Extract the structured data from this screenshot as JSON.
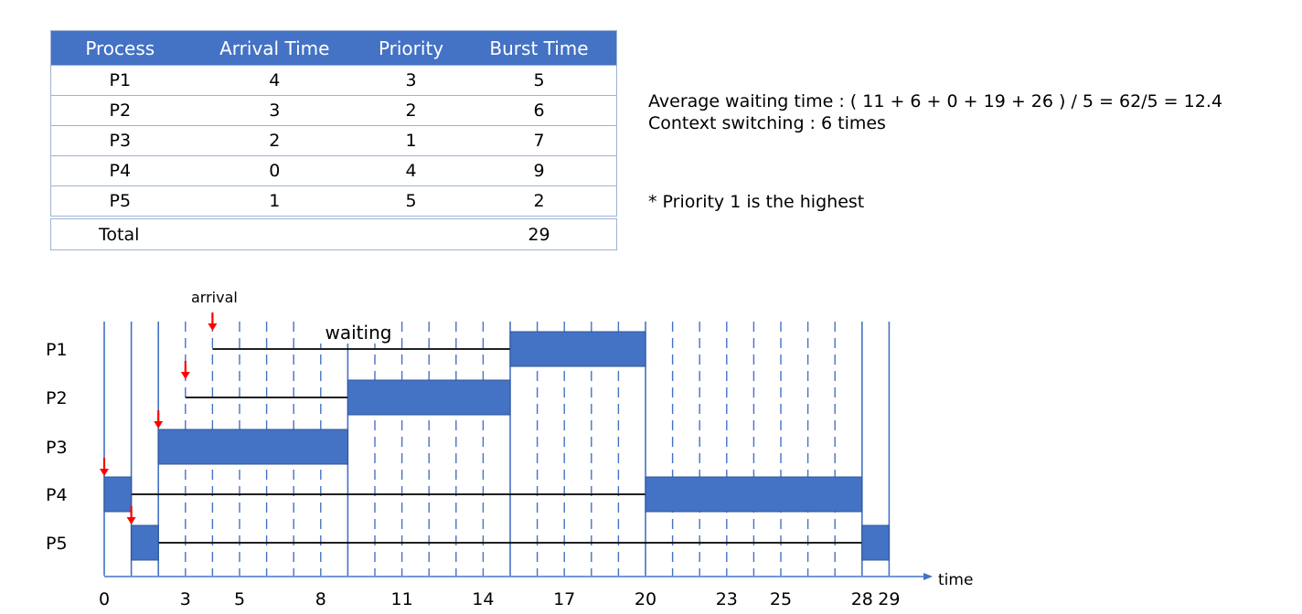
{
  "table": {
    "headers": [
      "Process",
      "Arrival Time",
      "Priority",
      "Burst Time"
    ],
    "rows": [
      {
        "process": "P1",
        "arrival": "4",
        "priority": "3",
        "burst": "5"
      },
      {
        "process": "P2",
        "arrival": "3",
        "priority": "2",
        "burst": "6"
      },
      {
        "process": "P3",
        "arrival": "2",
        "priority": "1",
        "burst": "7"
      },
      {
        "process": "P4",
        "arrival": "0",
        "priority": "4",
        "burst": "9"
      },
      {
        "process": "P5",
        "arrival": "1",
        "priority": "5",
        "burst": "2"
      }
    ],
    "total_label": "Total",
    "total_burst": "29"
  },
  "info": {
    "avg_waiting": "Average waiting time : ( 11 + 6 + 0 + 19 + 26 ) / 5 = 62/5 = 12.4",
    "context_switching": "Context switching : 6 times",
    "note": "* Priority 1 is the highest"
  },
  "gantt": {
    "arrival_label": "arrival",
    "waiting_label": "waiting",
    "axis_label": "time",
    "time_ticks": [
      "0",
      "3",
      "5",
      "8",
      "11",
      "14",
      "17",
      "20",
      "23",
      "25",
      "28",
      "29"
    ],
    "processes": [
      {
        "name": "P1",
        "arrival": 4,
        "segments": [
          [
            15,
            20
          ]
        ]
      },
      {
        "name": "P2",
        "arrival": 3,
        "segments": [
          [
            9,
            15
          ]
        ]
      },
      {
        "name": "P3",
        "arrival": 2,
        "segments": [
          [
            2,
            9
          ]
        ]
      },
      {
        "name": "P4",
        "arrival": 0,
        "segments": [
          [
            0,
            1
          ],
          [
            20,
            28
          ]
        ]
      },
      {
        "name": "P5",
        "arrival": 1,
        "segments": [
          [
            1,
            2
          ],
          [
            28,
            29
          ]
        ]
      }
    ],
    "colors": {
      "block": "#4472c4",
      "arrow": "#ff0000",
      "axis": "#4472c4",
      "line": "#000000"
    }
  }
}
